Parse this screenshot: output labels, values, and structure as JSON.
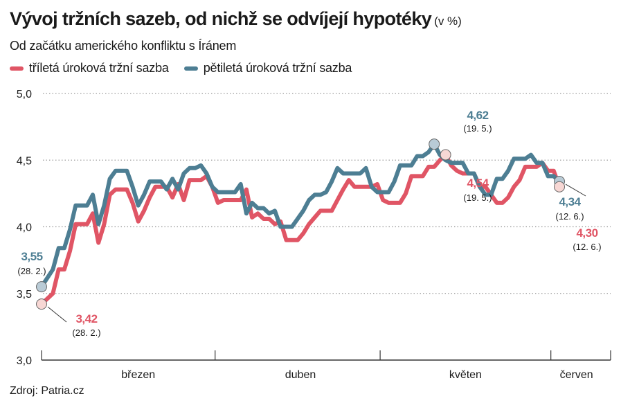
{
  "title": "Vývoj tržních sazeb, od nichž se odvíjejí hypotéky",
  "title_unit": "(v %)",
  "subtitle": "Od začátku amerického konfliktu s Íránem",
  "source": "Zdroj: Patria.cz",
  "colors": {
    "three_year": "#e05565",
    "five_year": "#4d7e93",
    "grid": "#9a9a9a",
    "axis": "#333333"
  },
  "chart_data": {
    "type": "line",
    "title": "Vývoj tržních sazeb, od nichž se odvíjejí hypotéky",
    "ylim": [
      3.0,
      5.0
    ],
    "y_ticks": [
      "3,0",
      "3,5",
      "4,0",
      "4,5",
      "5,0"
    ],
    "y_tick_values": [
      3.0,
      3.5,
      4.0,
      4.5,
      5.0
    ],
    "grid": true,
    "legend_position": "top-left",
    "x_range": [
      0,
      100
    ],
    "month_labels": [
      {
        "label": "březen",
        "center": 17
      },
      {
        "label": "duben",
        "center": 45.5
      },
      {
        "label": "květen",
        "center": 74.5
      },
      {
        "label": "červen",
        "center": 94
      }
    ],
    "month_boundaries": [
      0,
      30.5,
      59.5,
      89.5,
      100
    ],
    "series": [
      {
        "name": "tříletá úroková tržní sazba",
        "color": "#e05565",
        "points": [
          [
            0,
            3.42
          ],
          [
            2,
            3.5
          ],
          [
            3,
            3.68
          ],
          [
            4,
            3.68
          ],
          [
            5,
            3.82
          ],
          [
            6,
            4.02
          ],
          [
            7,
            4.02
          ],
          [
            8,
            4.02
          ],
          [
            9,
            4.1
          ],
          [
            10,
            3.88
          ],
          [
            11,
            4.02
          ],
          [
            12,
            4.24
          ],
          [
            13,
            4.28
          ],
          [
            14,
            4.28
          ],
          [
            15,
            4.28
          ],
          [
            16,
            4.18
          ],
          [
            17,
            4.04
          ],
          [
            18,
            4.12
          ],
          [
            19,
            4.22
          ],
          [
            20,
            4.3
          ],
          [
            21,
            4.3
          ],
          [
            22,
            4.3
          ],
          [
            23,
            4.22
          ],
          [
            24,
            4.32
          ],
          [
            25,
            4.2
          ],
          [
            26,
            4.35
          ],
          [
            27,
            4.35
          ],
          [
            28,
            4.35
          ],
          [
            29,
            4.38
          ],
          [
            30,
            4.3
          ],
          [
            31,
            4.18
          ],
          [
            32,
            4.2
          ],
          [
            33,
            4.2
          ],
          [
            34,
            4.2
          ],
          [
            35,
            4.2
          ],
          [
            36,
            4.28
          ],
          [
            37,
            4.07
          ],
          [
            38,
            4.1
          ],
          [
            39,
            4.06
          ],
          [
            40,
            4.06
          ],
          [
            41,
            4.02
          ],
          [
            42,
            4.04
          ],
          [
            43,
            3.9
          ],
          [
            44,
            3.9
          ],
          [
            45,
            3.9
          ],
          [
            46,
            3.95
          ],
          [
            47,
            4.02
          ],
          [
            48,
            4.07
          ],
          [
            49,
            4.12
          ],
          [
            50,
            4.12
          ],
          [
            51,
            4.12
          ],
          [
            52,
            4.2
          ],
          [
            53,
            4.28
          ],
          [
            54,
            4.35
          ],
          [
            55,
            4.3
          ],
          [
            56,
            4.3
          ],
          [
            57,
            4.3
          ],
          [
            58,
            4.3
          ],
          [
            59,
            4.32
          ],
          [
            60,
            4.2
          ],
          [
            61,
            4.18
          ],
          [
            62,
            4.18
          ],
          [
            63,
            4.18
          ],
          [
            64,
            4.25
          ],
          [
            65,
            4.38
          ],
          [
            66,
            4.38
          ],
          [
            67,
            4.38
          ],
          [
            68,
            4.45
          ],
          [
            69,
            4.45
          ],
          [
            70,
            4.5
          ],
          [
            71,
            4.54
          ],
          [
            72,
            4.46
          ],
          [
            73,
            4.42
          ],
          [
            74,
            4.4
          ],
          [
            75,
            4.4
          ],
          [
            76,
            4.4
          ],
          [
            77,
            4.3
          ],
          [
            78,
            4.3
          ],
          [
            79,
            4.24
          ],
          [
            80,
            4.18
          ],
          [
            81,
            4.18
          ],
          [
            82,
            4.22
          ],
          [
            83,
            4.3
          ],
          [
            84,
            4.35
          ],
          [
            85,
            4.45
          ],
          [
            86,
            4.45
          ],
          [
            87,
            4.45
          ],
          [
            88,
            4.48
          ],
          [
            89,
            4.42
          ],
          [
            90,
            4.42
          ],
          [
            91,
            4.3
          ]
        ]
      },
      {
        "name": "pětiletá úroková tržní sazba",
        "color": "#4d7e93",
        "points": [
          [
            0,
            3.55
          ],
          [
            2,
            3.68
          ],
          [
            3,
            3.84
          ],
          [
            4,
            3.84
          ],
          [
            5,
            3.98
          ],
          [
            6,
            4.16
          ],
          [
            7,
            4.16
          ],
          [
            8,
            4.16
          ],
          [
            9,
            4.24
          ],
          [
            10,
            4.02
          ],
          [
            11,
            4.16
          ],
          [
            12,
            4.36
          ],
          [
            13,
            4.42
          ],
          [
            14,
            4.42
          ],
          [
            15,
            4.42
          ],
          [
            16,
            4.3
          ],
          [
            17,
            4.16
          ],
          [
            18,
            4.24
          ],
          [
            19,
            4.34
          ],
          [
            20,
            4.34
          ],
          [
            21,
            4.34
          ],
          [
            22,
            4.28
          ],
          [
            23,
            4.36
          ],
          [
            24,
            4.28
          ],
          [
            25,
            4.4
          ],
          [
            26,
            4.44
          ],
          [
            27,
            4.44
          ],
          [
            28,
            4.46
          ],
          [
            29,
            4.4
          ],
          [
            30,
            4.3
          ],
          [
            31,
            4.26
          ],
          [
            32,
            4.26
          ],
          [
            33,
            4.26
          ],
          [
            34,
            4.26
          ],
          [
            35,
            4.32
          ],
          [
            36,
            4.1
          ],
          [
            37,
            4.18
          ],
          [
            38,
            4.14
          ],
          [
            39,
            4.14
          ],
          [
            40,
            4.1
          ],
          [
            41,
            4.12
          ],
          [
            42,
            4.0
          ],
          [
            43,
            4.0
          ],
          [
            44,
            4.0
          ],
          [
            45,
            4.06
          ],
          [
            46,
            4.12
          ],
          [
            47,
            4.2
          ],
          [
            48,
            4.24
          ],
          [
            49,
            4.24
          ],
          [
            50,
            4.26
          ],
          [
            51,
            4.34
          ],
          [
            52,
            4.44
          ],
          [
            53,
            4.4
          ],
          [
            54,
            4.4
          ],
          [
            55,
            4.4
          ],
          [
            56,
            4.4
          ],
          [
            57,
            4.44
          ],
          [
            58,
            4.3
          ],
          [
            59,
            4.26
          ],
          [
            60,
            4.26
          ],
          [
            61,
            4.26
          ],
          [
            62,
            4.34
          ],
          [
            63,
            4.46
          ],
          [
            64,
            4.46
          ],
          [
            65,
            4.46
          ],
          [
            66,
            4.53
          ],
          [
            67,
            4.53
          ],
          [
            68,
            4.56
          ],
          [
            69,
            4.62
          ],
          [
            70,
            4.54
          ],
          [
            71,
            4.5
          ],
          [
            72,
            4.48
          ],
          [
            73,
            4.48
          ],
          [
            74,
            4.48
          ],
          [
            75,
            4.4
          ],
          [
            76,
            4.4
          ],
          [
            77,
            4.3
          ],
          [
            78,
            4.24
          ],
          [
            79,
            4.24
          ],
          [
            80,
            4.36
          ],
          [
            81,
            4.36
          ],
          [
            82,
            4.42
          ],
          [
            83,
            4.51
          ],
          [
            84,
            4.51
          ],
          [
            85,
            4.51
          ],
          [
            86,
            4.54
          ],
          [
            87,
            4.48
          ],
          [
            88,
            4.48
          ],
          [
            89,
            4.38
          ],
          [
            90,
            4.38
          ],
          [
            91,
            4.34
          ]
        ]
      }
    ],
    "annotations": [
      {
        "series": "pětiletá úroková tržní sazba",
        "x": 0,
        "value": "3,55",
        "date": "(28. 2.)"
      },
      {
        "series": "tříletá úroková tržní sazba",
        "x": 0,
        "value": "3,42",
        "date": "(28. 2.)"
      },
      {
        "series": "pětiletá úroková tržní sazba",
        "x": 69,
        "value": "4,62",
        "date": "(19. 5.)"
      },
      {
        "series": "tříletá úroková tržní sazba",
        "x": 71,
        "value": "4,54",
        "date": "(19. 5.)"
      },
      {
        "series": "pětiletá úroková tržní sazba",
        "x": 91,
        "value": "4,34",
        "date": "(12. 6.)"
      },
      {
        "series": "tříletá úroková tržní sazba",
        "x": 91,
        "value": "4,30",
        "date": "(12. 6.)"
      }
    ]
  }
}
